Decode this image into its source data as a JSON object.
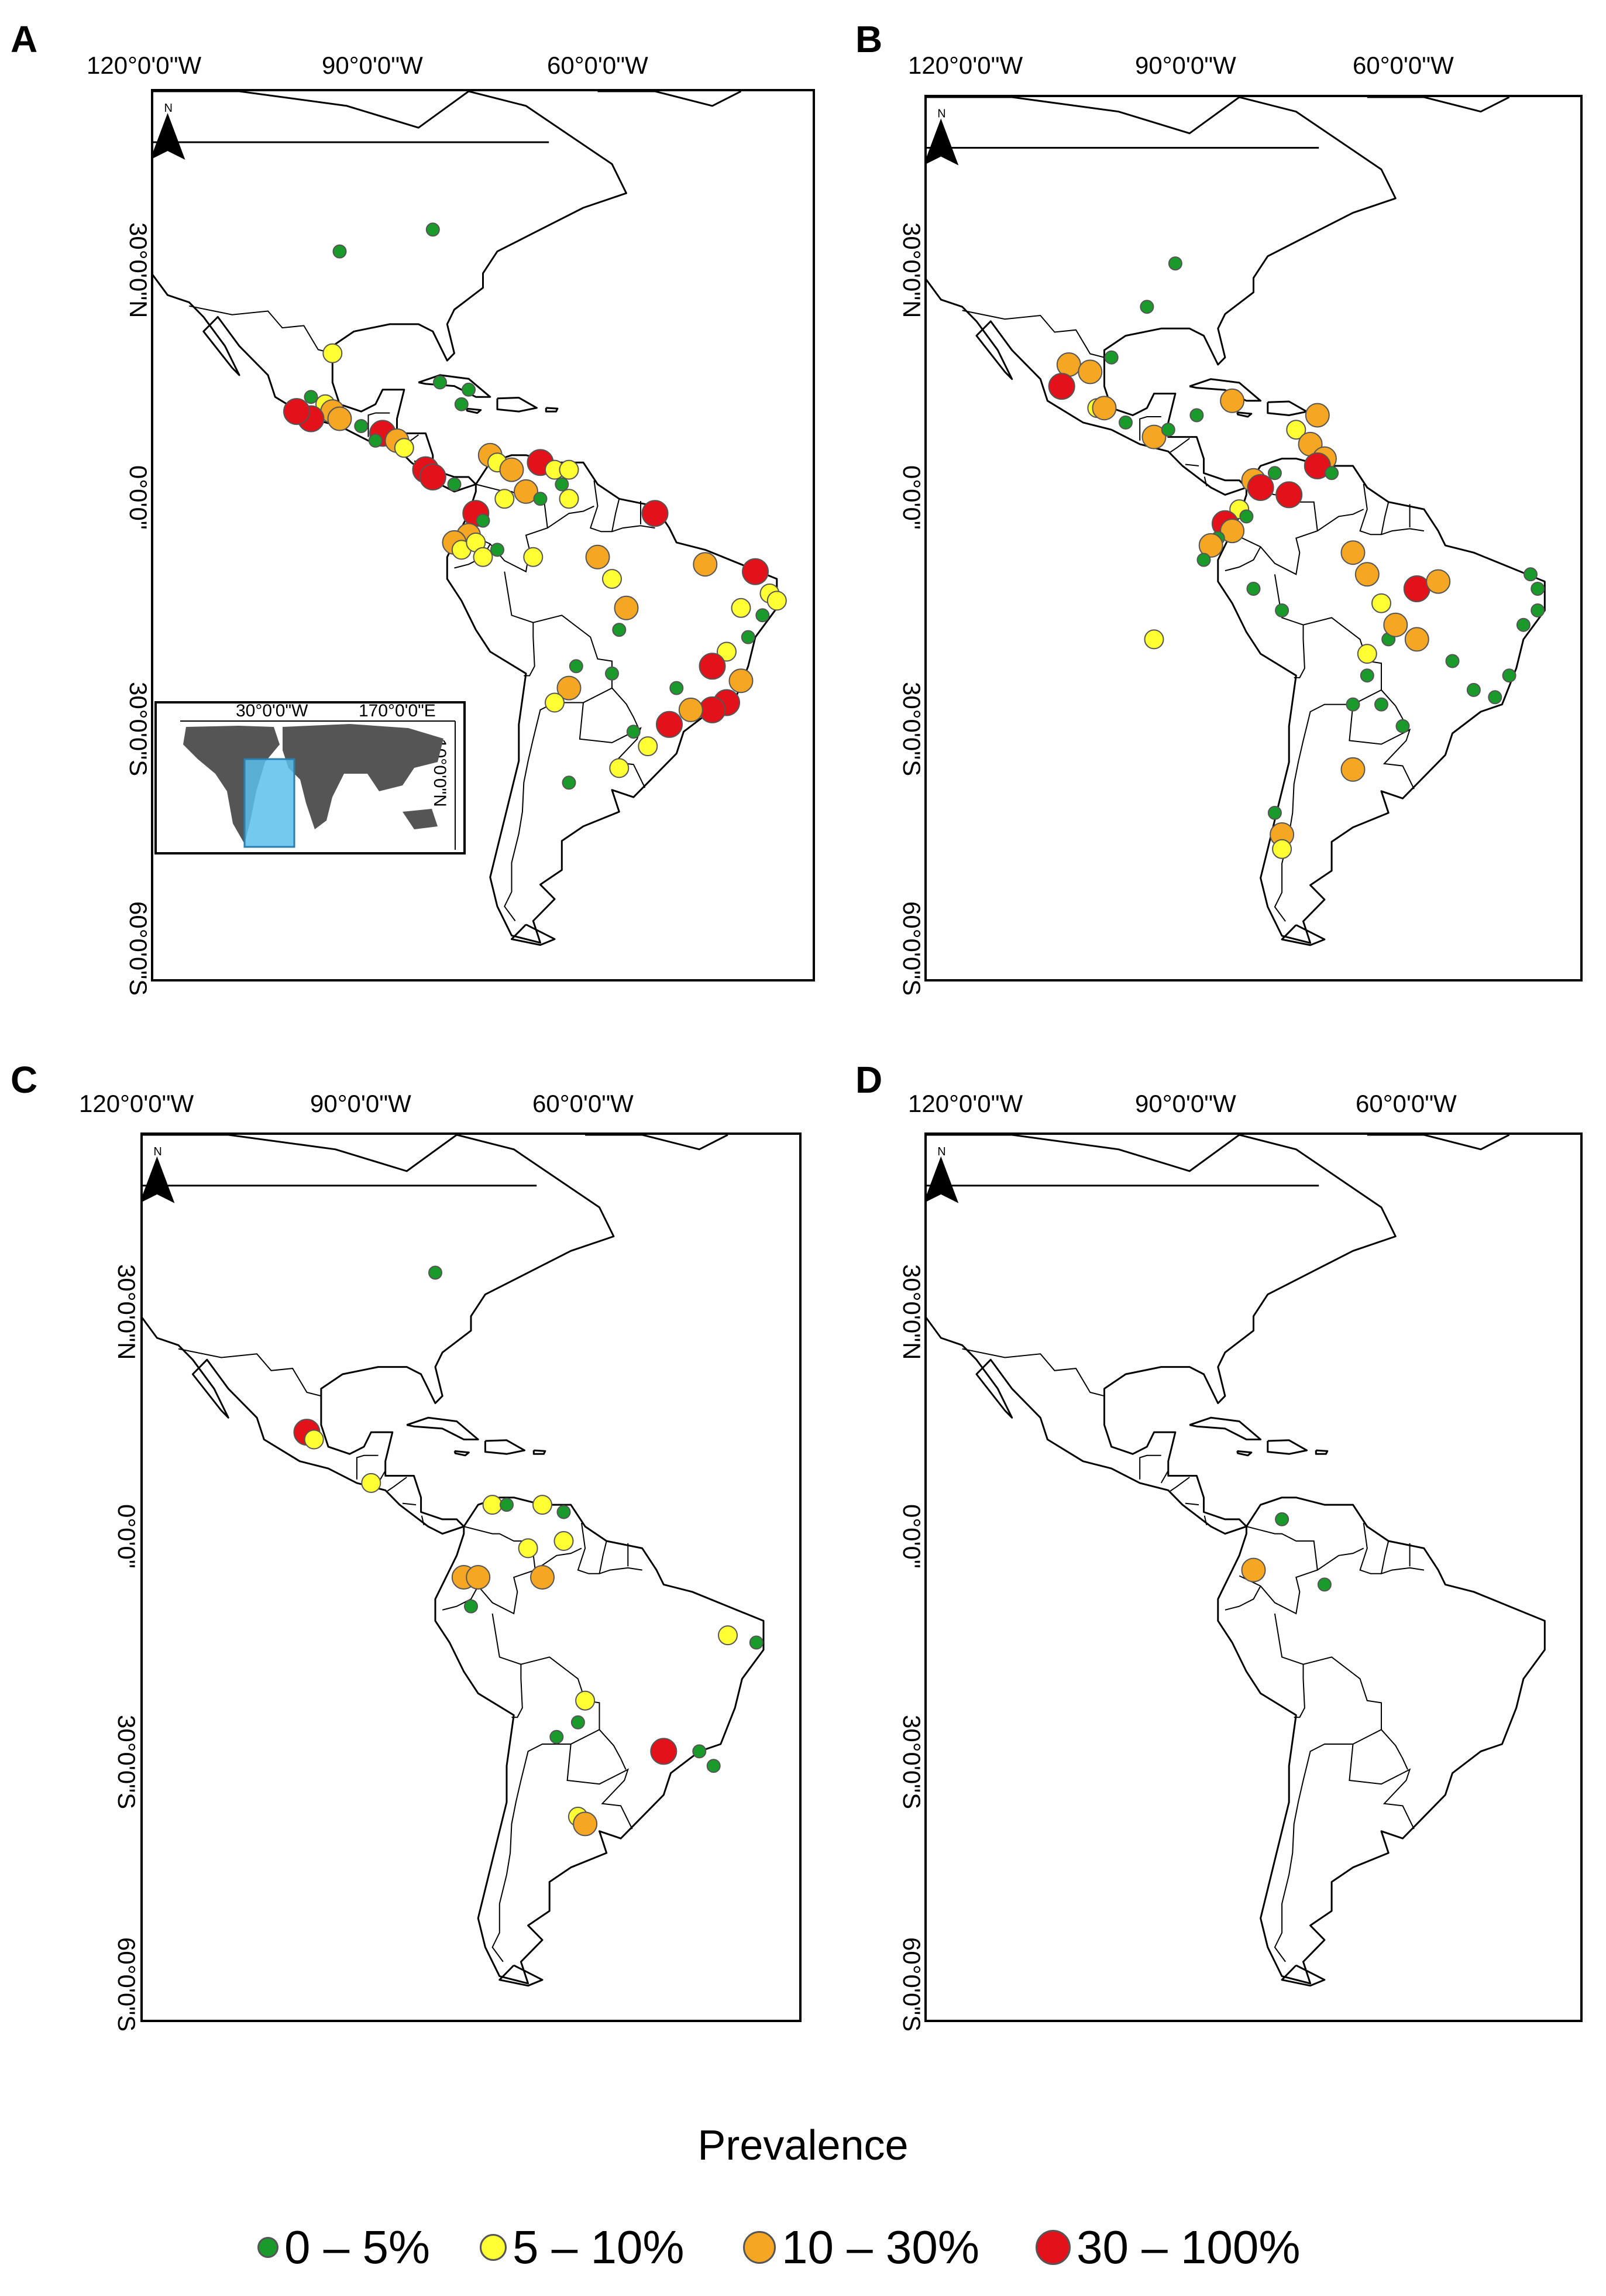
{
  "figure": {
    "panels": [
      {
        "id": "A",
        "letter": "A",
        "lon_labels": [
          "120°0'0\"W",
          "90°0'0\"W",
          "60°0'0\"W"
        ],
        "lat_labels": [
          "30°0'0\"N",
          "0°0'0\"",
          "30°0'0\"S",
          "60°0'0\"S"
        ],
        "north": "N"
      },
      {
        "id": "B",
        "letter": "B",
        "lon_labels": [
          "120°0'0\"W",
          "90°0'0\"W",
          "60°0'0\"W"
        ],
        "lat_labels": [
          "30°0'0\"N",
          "0°0'0\"",
          "30°0'0\"S",
          "60°0'0\"S"
        ],
        "north": "N"
      },
      {
        "id": "C",
        "letter": "C",
        "lon_labels": [
          "120°0'0\"W",
          "90°0'0\"W",
          "60°0'0\"W"
        ],
        "lat_labels": [
          "30°0'0\"N",
          "0°0'0\"",
          "30°0'0\"S",
          "60°0'0\"S"
        ],
        "north": "N"
      },
      {
        "id": "D",
        "letter": "D",
        "lon_labels": [
          "120°0'0\"W",
          "90°0'0\"W",
          "60°0'0\"W"
        ],
        "lat_labels": [
          "30°0'0\"N",
          "0°0'0\"",
          "30°0'0\"S",
          "60°0'0\"S"
        ],
        "north": "N"
      }
    ],
    "inset": {
      "lon_labels": [
        "30°0'0\"W",
        "170°0'0\"E"
      ],
      "lat_label": "10°0'0\"N"
    },
    "legend": {
      "title": "Prevalence",
      "items": [
        {
          "label": "0 – 5%",
          "color": "#1a9a2a"
        },
        {
          "label": "5 – 10%",
          "color": "#ffff33"
        },
        {
          "label": "10 – 30%",
          "color": "#f5a623"
        },
        {
          "label": "30 – 100%",
          "color": "#e3121a"
        }
      ]
    },
    "points": {
      "A": [
        [
          -96,
          40,
          0
        ],
        [
          -83,
          43,
          0
        ],
        [
          -97,
          26,
          1
        ],
        [
          -100,
          20,
          0
        ],
        [
          -98,
          19,
          1
        ],
        [
          -97,
          18,
          2
        ],
        [
          -96,
          17,
          2
        ],
        [
          -100,
          17,
          3
        ],
        [
          -102,
          18,
          3
        ],
        [
          -93,
          16,
          0
        ],
        [
          -90,
          15,
          3
        ],
        [
          -88,
          14,
          2
        ],
        [
          -91,
          14,
          0
        ],
        [
          -87,
          13,
          1
        ],
        [
          -84,
          10,
          3
        ],
        [
          -83,
          9,
          3
        ],
        [
          -80,
          8,
          0
        ],
        [
          -82,
          22,
          0
        ],
        [
          -78,
          21,
          0
        ],
        [
          -79,
          19,
          0
        ],
        [
          -75,
          12,
          2
        ],
        [
          -74,
          11,
          1
        ],
        [
          -72,
          10,
          2
        ],
        [
          -68,
          11,
          3
        ],
        [
          -66,
          10,
          1
        ],
        [
          -64,
          10,
          1
        ],
        [
          -70,
          7,
          2
        ],
        [
          -68,
          6,
          0
        ],
        [
          -73,
          6,
          1
        ],
        [
          -77,
          4,
          3
        ],
        [
          -76,
          3,
          0
        ],
        [
          -78,
          1,
          2
        ],
        [
          -80,
          0,
          2
        ],
        [
          -79,
          -1,
          1
        ],
        [
          -77,
          0,
          1
        ],
        [
          -76,
          -2,
          1
        ],
        [
          -74,
          -1,
          0
        ],
        [
          -69,
          -2,
          1
        ],
        [
          -64,
          6,
          1
        ],
        [
          -65,
          8,
          0
        ],
        [
          -60,
          -2,
          2
        ],
        [
          -58,
          -5,
          1
        ],
        [
          -56,
          -9,
          2
        ],
        [
          -57,
          -12,
          0
        ],
        [
          -52,
          4,
          3
        ],
        [
          -45,
          -3,
          2
        ],
        [
          -38,
          -4,
          3
        ],
        [
          -36,
          -7,
          1
        ],
        [
          -35,
          -8,
          1
        ],
        [
          -37,
          -10,
          0
        ],
        [
          -40,
          -9,
          1
        ],
        [
          -39,
          -13,
          0
        ],
        [
          -42,
          -15,
          1
        ],
        [
          -44,
          -17,
          3
        ],
        [
          -40,
          -19,
          2
        ],
        [
          -42,
          -22,
          3
        ],
        [
          -44,
          -23,
          3
        ],
        [
          -47,
          -23,
          2
        ],
        [
          -49,
          -20,
          0
        ],
        [
          -50,
          -25,
          3
        ],
        [
          -53,
          -28,
          1
        ],
        [
          -55,
          -26,
          0
        ],
        [
          -58,
          -18,
          0
        ],
        [
          -63,
          -17,
          0
        ],
        [
          -64,
          -20,
          2
        ],
        [
          -66,
          -22,
          1
        ],
        [
          -57,
          -31,
          1
        ],
        [
          -64,
          -33,
          0
        ]
      ],
      "B": [
        [
          -87,
          39,
          0
        ],
        [
          -91,
          33,
          0
        ],
        [
          -102,
          25,
          2
        ],
        [
          -99,
          24,
          2
        ],
        [
          -103,
          22,
          3
        ],
        [
          -96,
          26,
          0
        ],
        [
          -98,
          19,
          1
        ],
        [
          -97,
          19,
          2
        ],
        [
          -94,
          17,
          0
        ],
        [
          -90,
          15,
          2
        ],
        [
          -88,
          16,
          0
        ],
        [
          -84,
          18,
          0
        ],
        [
          -79,
          20,
          2
        ],
        [
          -67,
          18,
          2
        ],
        [
          -70,
          16,
          1
        ],
        [
          -68,
          14,
          2
        ],
        [
          -66,
          12,
          2
        ],
        [
          -67,
          11,
          3
        ],
        [
          -65,
          10,
          0
        ],
        [
          -73,
          10,
          0
        ],
        [
          -76,
          9,
          2
        ],
        [
          -75,
          8,
          3
        ],
        [
          -71,
          7,
          3
        ],
        [
          -78,
          5,
          1
        ],
        [
          -77,
          4,
          0
        ],
        [
          -80,
          3,
          3
        ],
        [
          -79,
          2,
          2
        ],
        [
          -81,
          1,
          0
        ],
        [
          -82,
          0,
          2
        ],
        [
          -83,
          -2,
          0
        ],
        [
          -76,
          -6,
          0
        ],
        [
          -72,
          -9,
          0
        ],
        [
          -62,
          -1,
          2
        ],
        [
          -60,
          -4,
          2
        ],
        [
          -58,
          -8,
          1
        ],
        [
          -53,
          -6,
          3
        ],
        [
          -50,
          -5,
          2
        ],
        [
          -57,
          -13,
          0
        ],
        [
          -60,
          -15,
          1
        ],
        [
          -56,
          -11,
          2
        ],
        [
          -60,
          -18,
          0
        ],
        [
          -53,
          -13,
          2
        ],
        [
          -48,
          -16,
          0
        ],
        [
          -45,
          -20,
          0
        ],
        [
          -42,
          -21,
          0
        ],
        [
          -40,
          -18,
          0
        ],
        [
          -38,
          -11,
          0
        ],
        [
          -36,
          -9,
          0
        ],
        [
          -37,
          -4,
          0
        ],
        [
          -36,
          -6,
          0
        ],
        [
          -62,
          -22,
          0
        ],
        [
          -58,
          -22,
          0
        ],
        [
          -55,
          -25,
          0
        ],
        [
          -62,
          -31,
          2
        ],
        [
          -73,
          -37,
          0
        ],
        [
          -72,
          -40,
          2
        ],
        [
          -72,
          -42,
          1
        ],
        [
          -90,
          -13,
          1
        ]
      ],
      "C": [
        [
          -81,
          43,
          0
        ],
        [
          -99,
          21,
          3
        ],
        [
          -98,
          20,
          1
        ],
        [
          -90,
          14,
          1
        ],
        [
          -73,
          11,
          1
        ],
        [
          -71,
          11,
          0
        ],
        [
          -66,
          11,
          1
        ],
        [
          -63,
          10,
          0
        ],
        [
          -68,
          5,
          1
        ],
        [
          -63,
          6,
          1
        ],
        [
          -66,
          1,
          2
        ],
        [
          -77,
          1,
          2
        ],
        [
          -75,
          1,
          2
        ],
        [
          -76,
          -3,
          0
        ],
        [
          -40,
          -7,
          1
        ],
        [
          -36,
          -8,
          0
        ],
        [
          -60,
          -16,
          1
        ],
        [
          -61,
          -19,
          0
        ],
        [
          -64,
          -21,
          0
        ],
        [
          -49,
          -23,
          3
        ],
        [
          -44,
          -23,
          0
        ],
        [
          -42,
          -25,
          0
        ],
        [
          -61,
          -32,
          1
        ],
        [
          -60,
          -33,
          2
        ]
      ],
      "D": [
        [
          -72,
          9,
          0
        ],
        [
          -76,
          2,
          2
        ],
        [
          -66,
          0,
          0
        ]
      ]
    }
  }
}
